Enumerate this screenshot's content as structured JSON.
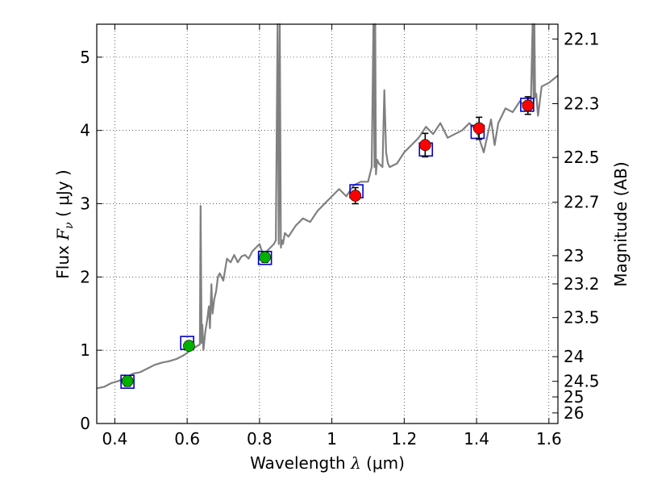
{
  "chart_data": {
    "type": "scatter",
    "title": "",
    "xlabel": {
      "prefix": "Wavelength  ",
      "symbol": "λ",
      "unit": " (μm)"
    },
    "ylabel": {
      "prefix": "Flux  ",
      "symbol": "F",
      "subscript": "ν",
      "unit": "  ( μJy )"
    },
    "y2label": "Magnitude (AB)",
    "xlim": [
      0.35,
      1.625
    ],
    "ylim": [
      0,
      5.45
    ],
    "x_ticks": [
      "0.4",
      "0.6",
      "0.8",
      "1",
      "1.2",
      "1.4",
      "1.6"
    ],
    "y_ticks": [
      "0",
      "1",
      "2",
      "3",
      "4",
      "5"
    ],
    "y2_ticks": [
      "22.1",
      "22.3",
      "22.5",
      "22.7",
      "23",
      "23.2",
      "23.5",
      "24",
      "24.5",
      "25",
      "26"
    ],
    "grid": true,
    "colors": {
      "model": "#808080",
      "green_points": "#00b000",
      "red_points": "#ff0000",
      "squares": "#0000cc",
      "errorbars": "#000000"
    },
    "model_spectrum": {
      "x": [
        0.35,
        0.37,
        0.39,
        0.41,
        0.43,
        0.45,
        0.47,
        0.49,
        0.51,
        0.53,
        0.55,
        0.57,
        0.59,
        0.61,
        0.625,
        0.635,
        0.637,
        0.64,
        0.642,
        0.645,
        0.65,
        0.655,
        0.66,
        0.663,
        0.667,
        0.67,
        0.675,
        0.68,
        0.685,
        0.69,
        0.695,
        0.7,
        0.71,
        0.72,
        0.73,
        0.74,
        0.75,
        0.76,
        0.77,
        0.78,
        0.79,
        0.8,
        0.81,
        0.82,
        0.83,
        0.84,
        0.845,
        0.85,
        0.853,
        0.856,
        0.859,
        0.862,
        0.865,
        0.87,
        0.88,
        0.9,
        0.92,
        0.94,
        0.96,
        0.98,
        1.0,
        1.02,
        1.04,
        1.06,
        1.08,
        1.1,
        1.11,
        1.115,
        1.118,
        1.12,
        1.122,
        1.125,
        1.13,
        1.14,
        1.145,
        1.15,
        1.155,
        1.16,
        1.18,
        1.2,
        1.22,
        1.24,
        1.26,
        1.28,
        1.3,
        1.32,
        1.34,
        1.36,
        1.38,
        1.4,
        1.42,
        1.44,
        1.45,
        1.46,
        1.47,
        1.48,
        1.5,
        1.52,
        1.54,
        1.55,
        1.555,
        1.558,
        1.56,
        1.562,
        1.565,
        1.57,
        1.58,
        1.6,
        1.625
      ],
      "y": [
        0.48,
        0.5,
        0.55,
        0.58,
        0.62,
        0.68,
        0.7,
        0.75,
        0.8,
        0.83,
        0.85,
        0.88,
        0.93,
        1.0,
        1.05,
        1.08,
        2.97,
        1.1,
        1.35,
        1.0,
        1.25,
        1.4,
        1.6,
        1.3,
        1.9,
        1.5,
        1.7,
        1.8,
        2.0,
        2.05,
        2.0,
        1.95,
        2.25,
        2.2,
        2.3,
        2.2,
        2.28,
        2.3,
        2.25,
        2.35,
        2.4,
        2.45,
        2.3,
        2.35,
        2.4,
        2.45,
        2.5,
        5.45,
        2.45,
        5.45,
        2.4,
        2.5,
        2.45,
        2.6,
        2.55,
        2.7,
        2.8,
        2.75,
        2.9,
        3.0,
        3.1,
        3.2,
        3.1,
        3.25,
        3.3,
        3.3,
        3.5,
        5.45,
        3.5,
        5.45,
        3.4,
        3.6,
        3.55,
        3.5,
        4.55,
        3.7,
        3.55,
        3.5,
        3.55,
        3.7,
        3.8,
        3.9,
        4.05,
        3.95,
        4.1,
        3.9,
        3.95,
        4.0,
        4.1,
        4.0,
        3.7,
        4.15,
        3.8,
        4.1,
        4.2,
        4.3,
        4.25,
        4.4,
        4.3,
        4.35,
        5.45,
        4.4,
        5.45,
        4.45,
        4.5,
        4.2,
        4.6,
        4.65,
        4.75
      ]
    },
    "points": [
      {
        "x": 0.435,
        "y": 0.58,
        "err": 0.07,
        "group": "green"
      },
      {
        "x": 0.605,
        "y": 1.06,
        "err": 0.06,
        "group": "green"
      },
      {
        "x": 0.815,
        "y": 2.27,
        "err": 0.07,
        "group": "green"
      },
      {
        "x": 1.065,
        "y": 3.11,
        "err": 0.11,
        "group": "red"
      },
      {
        "x": 1.258,
        "y": 3.8,
        "err": 0.16,
        "group": "red"
      },
      {
        "x": 1.407,
        "y": 4.03,
        "err": 0.15,
        "group": "red"
      },
      {
        "x": 1.542,
        "y": 4.34,
        "err": 0.12,
        "group": "red"
      }
    ],
    "model_squares": [
      {
        "x": 0.435,
        "y": 0.57
      },
      {
        "x": 0.6,
        "y": 1.1
      },
      {
        "x": 0.815,
        "y": 2.26
      },
      {
        "x": 1.068,
        "y": 3.17
      },
      {
        "x": 1.26,
        "y": 3.74
      },
      {
        "x": 1.403,
        "y": 3.98
      },
      {
        "x": 1.54,
        "y": 4.35
      }
    ]
  }
}
